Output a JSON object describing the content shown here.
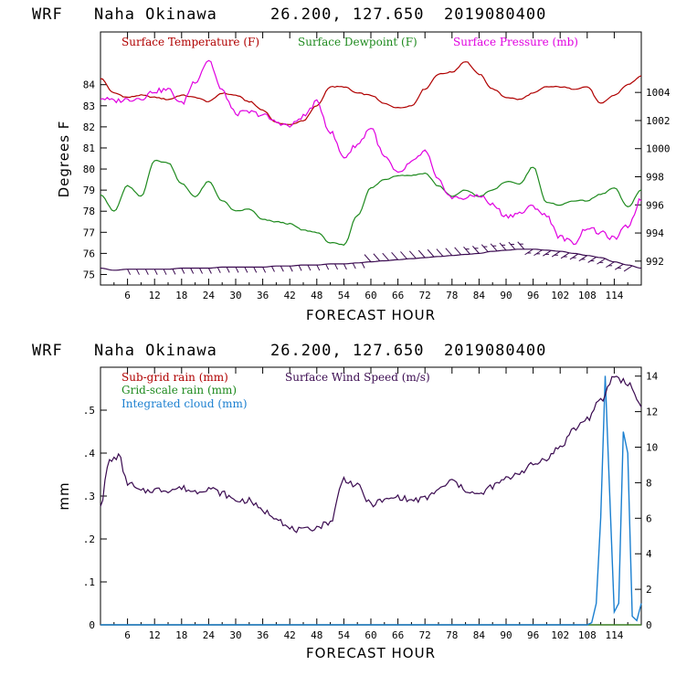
{
  "header": {
    "model": "WRF",
    "location": "Naha Okinawa",
    "coords": "26.200, 127.650",
    "init": "2019080400"
  },
  "colors": {
    "temperature": "#b00000",
    "dewpoint": "#1e8a1e",
    "pressure": "#e000e0",
    "subgrid_rain": "#b00000",
    "grid_rain": "#1e8a1e",
    "cloud": "#1a7fd0",
    "wind": "#3a0a50"
  },
  "chart_data": [
    {
      "type": "line",
      "title": "WRF  Naha Okinawa  26.200, 127.650  2019080400",
      "xlabel": "FORECAST HOUR",
      "ylabel": "Degrees F",
      "y2label": "",
      "xlim": [
        0,
        120
      ],
      "ylim": [
        74.5,
        86.5
      ],
      "y2lim": [
        990.3,
        1008.3
      ],
      "xticks": [
        "6",
        "12",
        "18",
        "24",
        "30",
        "36",
        "42",
        "48",
        "54",
        "60",
        "66",
        "72",
        "78",
        "84",
        "90",
        "96",
        "102",
        "108",
        "114"
      ],
      "yticks": [
        "75",
        "76",
        "77",
        "78",
        "79",
        "80",
        "81",
        "82",
        "83",
        "84"
      ],
      "y2ticks": [
        "992",
        "994",
        "996",
        "998",
        "1000",
        "1002",
        "1004"
      ],
      "series": [
        {
          "name": "Surface Temperature (F)",
          "axis": "left",
          "x": [
            0,
            3,
            6,
            9,
            12,
            15,
            18,
            21,
            24,
            27,
            30,
            33,
            36,
            39,
            42,
            45,
            48,
            51,
            54,
            57,
            60,
            63,
            66,
            69,
            72,
            75,
            78,
            81,
            84,
            87,
            90,
            93,
            96,
            99,
            102,
            105,
            108,
            111,
            114,
            117,
            120
          ],
          "values": [
            84.3,
            83.6,
            83.4,
            83.5,
            83.4,
            83.3,
            83.5,
            83.4,
            83.2,
            83.6,
            83.5,
            83.2,
            82.8,
            82.2,
            82.1,
            82.3,
            83.0,
            83.9,
            83.9,
            83.6,
            83.5,
            83.1,
            82.9,
            83.0,
            83.8,
            84.5,
            84.6,
            85.1,
            84.5,
            83.8,
            83.4,
            83.3,
            83.6,
            83.9,
            83.9,
            83.8,
            83.9,
            83.1,
            83.5,
            84.0,
            84.4
          ]
        },
        {
          "name": "Surface Dewpoint (F)",
          "axis": "left",
          "x": [
            0,
            3,
            6,
            9,
            12,
            15,
            18,
            21,
            24,
            27,
            30,
            33,
            36,
            39,
            42,
            45,
            48,
            51,
            54,
            57,
            60,
            63,
            66,
            69,
            72,
            75,
            78,
            81,
            84,
            87,
            90,
            93,
            96,
            99,
            102,
            105,
            108,
            111,
            114,
            117,
            120
          ],
          "values": [
            78.8,
            78.0,
            79.2,
            78.7,
            80.4,
            80.3,
            79.3,
            78.7,
            79.4,
            78.5,
            78.0,
            78.1,
            77.6,
            77.5,
            77.4,
            77.1,
            77.0,
            76.5,
            76.4,
            77.8,
            79.1,
            79.5,
            79.7,
            79.7,
            79.8,
            79.2,
            78.7,
            79.0,
            78.7,
            79.0,
            79.4,
            79.3,
            80.1,
            78.4,
            78.3,
            78.5,
            78.5,
            78.8,
            79.1,
            78.2,
            79.0
          ]
        },
        {
          "name": "Surface Pressure (mb)",
          "axis": "right",
          "x": [
            0,
            3,
            6,
            9,
            12,
            15,
            18,
            21,
            24,
            27,
            30,
            33,
            36,
            39,
            42,
            45,
            48,
            51,
            54,
            57,
            60,
            63,
            66,
            69,
            72,
            75,
            78,
            81,
            84,
            87,
            90,
            93,
            96,
            99,
            102,
            105,
            108,
            111,
            114,
            117,
            120
          ],
          "values": [
            1003.6,
            1003.4,
            1003.5,
            1003.6,
            1004.1,
            1004.2,
            1003.2,
            1004.8,
            1006.3,
            1004.1,
            1002.5,
            1002.6,
            1002.4,
            1001.9,
            1001.6,
            1002.3,
            1003.3,
            1001.2,
            999.4,
            1000.3,
            1001.5,
            999.4,
            998.2,
            999.0,
            999.8,
            997.7,
            996.5,
            996.5,
            996.7,
            996.0,
            995.2,
            995.4,
            995.9,
            995.2,
            993.7,
            993.3,
            994.4,
            994.0,
            993.6,
            994.5,
            996.4
          ]
        },
        {
          "name": "Wind barbs",
          "axis": "left",
          "x": [
            0,
            3,
            6,
            9,
            12,
            15,
            18,
            21,
            24,
            27,
            30,
            33,
            36,
            39,
            42,
            45,
            48,
            51,
            54,
            57,
            60,
            63,
            66,
            69,
            72,
            75,
            78,
            81,
            84,
            87,
            90,
            93,
            96,
            99,
            102,
            105,
            108,
            111,
            114,
            117,
            120
          ],
          "values": [
            75.3,
            75.2,
            75.25,
            75.25,
            75.25,
            75.25,
            75.3,
            75.3,
            75.3,
            75.35,
            75.35,
            75.35,
            75.35,
            75.4,
            75.4,
            75.45,
            75.45,
            75.5,
            75.5,
            75.55,
            75.6,
            75.65,
            75.7,
            75.75,
            75.8,
            75.85,
            75.9,
            75.95,
            76.0,
            76.1,
            76.15,
            76.2,
            76.2,
            76.15,
            76.1,
            76.0,
            75.9,
            75.8,
            75.6,
            75.45,
            75.3
          ]
        }
      ],
      "legend": [
        "Surface Temperature (F)",
        "Surface Dewpoint (F)",
        "Surface Pressure (mb)"
      ],
      "legend_position": "top-left",
      "grid": false
    },
    {
      "type": "line",
      "title": "WRF  Naha Okinawa  26.200, 127.650  2019080400",
      "xlabel": "FORECAST HOUR",
      "ylabel": "mm",
      "xlim": [
        0,
        120
      ],
      "ylim": [
        0,
        0.6
      ],
      "y2lim": [
        0,
        14.5
      ],
      "xticks": [
        "6",
        "12",
        "18",
        "24",
        "30",
        "36",
        "42",
        "48",
        "54",
        "60",
        "66",
        "72",
        "78",
        "84",
        "90",
        "96",
        "102",
        "108",
        "114"
      ],
      "yticks": [
        "0",
        ".1",
        ".2",
        ".3",
        ".4",
        ".5"
      ],
      "y2ticks": [
        "0",
        "2",
        "4",
        "6",
        "8",
        "10",
        "12",
        "14"
      ],
      "series": [
        {
          "name": "Sub-grid rain (mm)",
          "axis": "left",
          "x": [
            0,
            120
          ],
          "values": [
            0,
            0
          ]
        },
        {
          "name": "Grid-scale rain (mm)",
          "axis": "left",
          "x": [
            0,
            120
          ],
          "values": [
            0,
            0
          ]
        },
        {
          "name": "Integrated cloud (mm)",
          "axis": "left",
          "x": [
            0,
            108,
            109,
            110,
            111,
            112,
            113,
            114,
            115,
            116,
            117,
            118,
            119,
            120
          ],
          "values": [
            0,
            0,
            0.005,
            0.05,
            0.25,
            0.58,
            0.3,
            0.03,
            0.05,
            0.45,
            0.4,
            0.02,
            0.01,
            0.05
          ]
        },
        {
          "name": "Surface Wind Speed (m/s)",
          "axis": "right",
          "x": [
            0,
            2,
            4,
            6,
            9,
            12,
            15,
            18,
            21,
            24,
            27,
            30,
            33,
            36,
            39,
            42,
            45,
            48,
            51,
            54,
            57,
            60,
            63,
            66,
            69,
            72,
            75,
            78,
            81,
            84,
            87,
            90,
            93,
            96,
            99,
            102,
            105,
            108,
            111,
            114,
            117,
            120
          ],
          "values": [
            6.8,
            9.2,
            9.5,
            8.0,
            7.5,
            7.6,
            7.6,
            7.7,
            7.5,
            7.7,
            7.4,
            7.0,
            7.0,
            6.4,
            6.1,
            5.4,
            5.3,
            5.5,
            5.8,
            8.2,
            7.8,
            6.8,
            7.0,
            7.2,
            7.0,
            7.1,
            7.6,
            8.1,
            7.6,
            7.3,
            7.8,
            8.2,
            8.6,
            9.0,
            9.4,
            10.0,
            11.0,
            11.6,
            12.6,
            14.0,
            13.6,
            12.4
          ]
        }
      ],
      "legend": [
        "Sub-grid rain (mm)",
        "Grid-scale rain (mm)",
        "Integrated cloud (mm)",
        "Surface Wind Speed (m/s)"
      ],
      "legend_position": "top-left",
      "grid": false
    }
  ]
}
